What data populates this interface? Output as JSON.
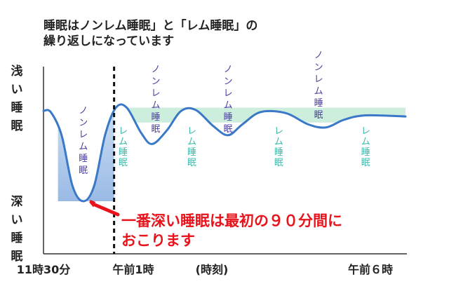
{
  "chart_data": {
    "type": "line",
    "title_lines": [
      "睡眠はノンレム睡眠」と「レム睡眠」の",
      "繰り返しになっています"
    ],
    "y_axis_labels": {
      "top": [
        "浅",
        "い",
        "睡",
        "眠"
      ],
      "bottom": [
        "深",
        "い",
        "睡",
        "眠"
      ]
    },
    "x_tick_labels": [
      "11時30分",
      "午前1時",
      "(時刻)",
      "午前６時"
    ],
    "series": [
      {
        "points": [
          {
            "t": 0.0,
            "d": 0.18
          },
          {
            "t": 0.02,
            "d": 0.19
          },
          {
            "t": 0.05,
            "d": 0.4
          },
          {
            "t": 0.08,
            "d": 0.86
          },
          {
            "t": 0.11,
            "d": 1.0
          },
          {
            "t": 0.14,
            "d": 0.86
          },
          {
            "t": 0.17,
            "d": 0.4
          },
          {
            "t": 0.2,
            "d": 0.15
          },
          {
            "t": 0.23,
            "d": 0.15
          },
          {
            "t": 0.27,
            "d": 0.38
          },
          {
            "t": 0.3,
            "d": 0.48
          },
          {
            "t": 0.34,
            "d": 0.36
          },
          {
            "t": 0.38,
            "d": 0.18
          },
          {
            "t": 0.42,
            "d": 0.17
          },
          {
            "t": 0.47,
            "d": 0.32
          },
          {
            "t": 0.51,
            "d": 0.4
          },
          {
            "t": 0.55,
            "d": 0.3
          },
          {
            "t": 0.6,
            "d": 0.19
          },
          {
            "t": 0.67,
            "d": 0.2
          },
          {
            "t": 0.73,
            "d": 0.3
          },
          {
            "t": 0.78,
            "d": 0.33
          },
          {
            "t": 0.83,
            "d": 0.26
          },
          {
            "t": 0.89,
            "d": 0.22
          },
          {
            "t": 1.0,
            "d": 0.23
          }
        ],
        "color": "#3a78c8"
      }
    ],
    "stage_labels": [
      {
        "text": "ノンレム睡眠",
        "type": "nonrem"
      },
      {
        "text": "レム睡眠",
        "type": "rem"
      },
      {
        "text": "ノンレム睡眠",
        "type": "nonrem"
      },
      {
        "text": "レム睡眠",
        "type": "rem"
      },
      {
        "text": "ノンレム睡眠",
        "type": "nonrem"
      },
      {
        "text": "レム睡眠",
        "type": "rem"
      },
      {
        "text": "ノンレム睡眠",
        "type": "nonrem"
      },
      {
        "text": "レム睡眠",
        "type": "rem"
      }
    ],
    "annotation": {
      "lines": [
        "一番深い睡眠は最初の９０分間に",
        "おこります"
      ]
    },
    "colors": {
      "line": "#3a78c8",
      "nonrem_text": "#4a3fa0",
      "rem_text": "#3fb8aa",
      "rem_band": "#cdeedd",
      "first_cycle_fill": "#c5d9f1",
      "annotation": "#e8131b",
      "axis": "#333333",
      "text": "#222222"
    },
    "grid": false
  }
}
